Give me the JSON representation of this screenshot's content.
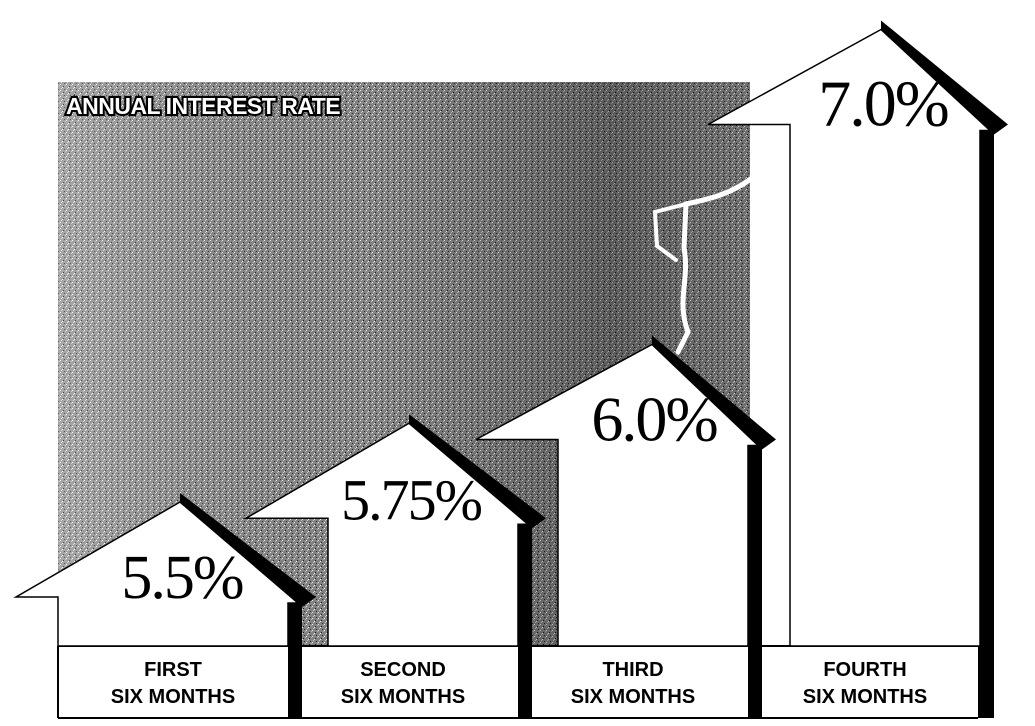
{
  "chart_data": {
    "type": "bar",
    "title": "ANNUAL INTEREST RATE",
    "categories": [
      [
        "FIRST",
        "SIX MONTHS"
      ],
      [
        "SECOND",
        "SIX MONTHS"
      ],
      [
        "THIRD",
        "SIX MONTHS"
      ],
      [
        "FOURTH",
        "SIX MONTHS"
      ]
    ],
    "values": [
      5.5,
      5.75,
      6.0,
      7.0
    ],
    "value_labels": [
      "5.5%",
      "5.75%",
      "6.0%",
      "7.0%"
    ],
    "unit": "%",
    "bar_shape": "house-arrow",
    "colors": {
      "bar_fill": "#ffffff",
      "bar_shadow": "#000000",
      "background_texture": "#6e6e6e"
    }
  }
}
